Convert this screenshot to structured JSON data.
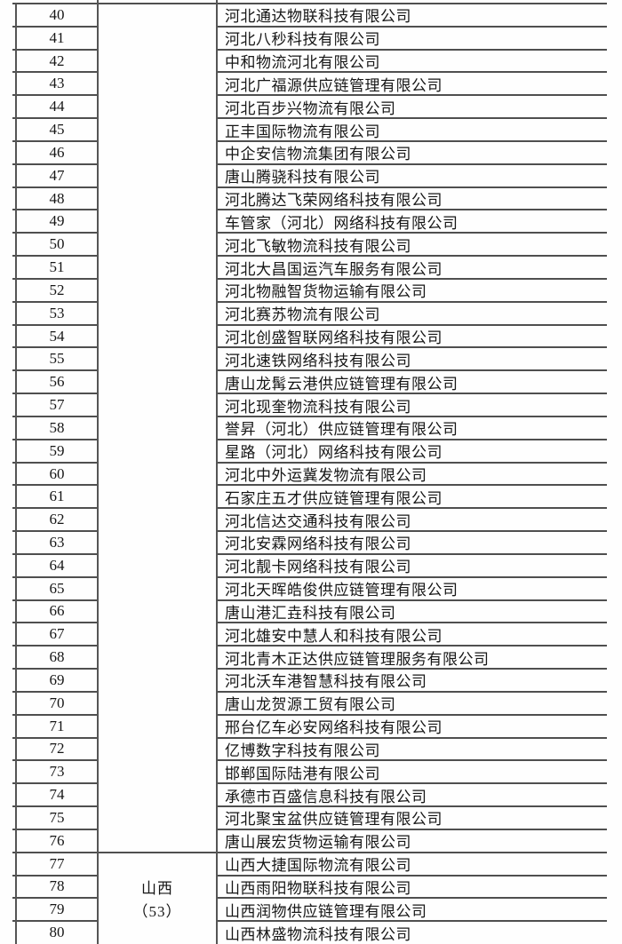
{
  "table": {
    "rows": [
      {
        "num": "40",
        "company": "河北通达物联科技有限公司"
      },
      {
        "num": "41",
        "company": "河北八秒科技有限公司"
      },
      {
        "num": "42",
        "company": "中和物流河北有限公司"
      },
      {
        "num": "43",
        "company": "河北广福源供应链管理有限公司"
      },
      {
        "num": "44",
        "company": "河北百步兴物流有限公司"
      },
      {
        "num": "45",
        "company": "正丰国际物流有限公司"
      },
      {
        "num": "46",
        "company": "中企安信物流集团有限公司"
      },
      {
        "num": "47",
        "company": "唐山腾骁科技有限公司"
      },
      {
        "num": "48",
        "company": "河北腾达飞荣网络科技有限公司"
      },
      {
        "num": "49",
        "company": "车管家（河北）网络科技有限公司"
      },
      {
        "num": "50",
        "company": "河北飞敏物流科技有限公司"
      },
      {
        "num": "51",
        "company": "河北大昌国运汽车服务有限公司"
      },
      {
        "num": "52",
        "company": "河北物融智货物运输有限公司"
      },
      {
        "num": "53",
        "company": "河北赛苏物流有限公司"
      },
      {
        "num": "54",
        "company": "河北创盛智联网络科技有限公司"
      },
      {
        "num": "55",
        "company": "河北速铁网络科技有限公司"
      },
      {
        "num": "56",
        "company": "唐山龙髯云港供应链管理有限公司"
      },
      {
        "num": "57",
        "company": "河北现奎物流科技有限公司"
      },
      {
        "num": "58",
        "company": "誉昇（河北）供应链管理有限公司"
      },
      {
        "num": "59",
        "company": "星路（河北）网络科技有限公司"
      },
      {
        "num": "60",
        "company": "河北中外运冀发物流有限公司"
      },
      {
        "num": "61",
        "company": "石家庄五才供应链管理有限公司"
      },
      {
        "num": "62",
        "company": "河北信达交通科技有限公司"
      },
      {
        "num": "63",
        "company": "河北安霖网络科技有限公司"
      },
      {
        "num": "64",
        "company": "河北靓卡网络科技有限公司"
      },
      {
        "num": "65",
        "company": "河北天晖皓俊供应链管理有限公司"
      },
      {
        "num": "66",
        "company": "唐山港汇垚科技有限公司"
      },
      {
        "num": "67",
        "company": "河北雄安中慧人和科技有限公司"
      },
      {
        "num": "68",
        "company": "河北青木正达供应链管理服务有限公司"
      },
      {
        "num": "69",
        "company": "河北沃车港智慧科技有限公司"
      },
      {
        "num": "70",
        "company": "唐山龙贺源工贸有限公司"
      },
      {
        "num": "71",
        "company": "邢台亿车必安网络科技有限公司"
      },
      {
        "num": "72",
        "company": "亿博数字科技有限公司"
      },
      {
        "num": "73",
        "company": "邯郸国际陆港有限公司"
      },
      {
        "num": "74",
        "company": "承德市百盛信息科技有限公司"
      },
      {
        "num": "75",
        "company": "河北聚宝盆供应链管理有限公司"
      },
      {
        "num": "76",
        "company": "唐山展宏货物运输有限公司"
      },
      {
        "num": "77",
        "company": "山西大捷国际物流有限公司"
      },
      {
        "num": "78",
        "company": "山西雨阳物联科技有限公司"
      },
      {
        "num": "79",
        "company": "山西润物供应链管理有限公司"
      },
      {
        "num": "80",
        "company": "山西林盛物流科技有限公司"
      }
    ],
    "province_cell": {
      "line1": "山西",
      "line2": "（53）",
      "start_num": "77"
    }
  }
}
